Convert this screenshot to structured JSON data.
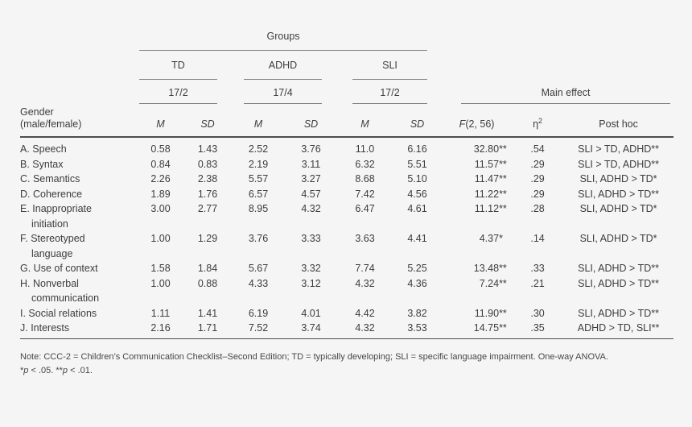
{
  "colors": {
    "background": "#f5f5f5",
    "text": "#3d3d3d",
    "rule_thin": "#828282",
    "rule_thick": "#4d4d4d"
  },
  "table": {
    "spanners": {
      "groups": "Groups",
      "main_effect": "Main effect"
    },
    "row_header": {
      "line1": "Gender",
      "line2": "(male/female)"
    },
    "groups": [
      {
        "name": "TD",
        "ratio": "17/2"
      },
      {
        "name": "ADHD",
        "ratio": "17/4"
      },
      {
        "name": "SLI",
        "ratio": "17/2"
      }
    ],
    "col_headers": {
      "m": "M",
      "sd": "SD",
      "f_symbol": "F",
      "f_df": "(2, 56)",
      "eta_symbol": "η",
      "eta_sup": "2",
      "post_hoc": "Post hoc"
    },
    "rows": [
      {
        "label_lines": [
          "A. Speech"
        ],
        "td_m": "0.58",
        "td_sd": "1.43",
        "adhd_m": "2.52",
        "adhd_sd": "3.76",
        "sli_m": "11.0",
        "sli_sd": "6.16",
        "f": "32.80",
        "f_sig": "**",
        "eta": ".54",
        "post_hoc": "SLI > TD, ADHD**"
      },
      {
        "label_lines": [
          "B. Syntax"
        ],
        "td_m": "0.84",
        "td_sd": "0.83",
        "adhd_m": "2.19",
        "adhd_sd": "3.11",
        "sli_m": "6.32",
        "sli_sd": "5.51",
        "f": "11.57",
        "f_sig": "**",
        "eta": ".29",
        "post_hoc": "SLI > TD, ADHD**"
      },
      {
        "label_lines": [
          "C. Semantics"
        ],
        "td_m": "2.26",
        "td_sd": "2.38",
        "adhd_m": "5.57",
        "adhd_sd": "3.27",
        "sli_m": "8.68",
        "sli_sd": "5.10",
        "f": "11.47",
        "f_sig": "**",
        "eta": ".29",
        "post_hoc": "SLI, ADHD > TD*"
      },
      {
        "label_lines": [
          "D. Coherence"
        ],
        "td_m": "1.89",
        "td_sd": "1.76",
        "adhd_m": "6.57",
        "adhd_sd": "4.57",
        "sli_m": "7.42",
        "sli_sd": "4.56",
        "f": "11.22",
        "f_sig": "**",
        "eta": ".29",
        "post_hoc": "SLI, ADHD > TD**"
      },
      {
        "label_lines": [
          "E. Inappropriate",
          "initiation"
        ],
        "td_m": "3.00",
        "td_sd": "2.77",
        "adhd_m": "8.95",
        "adhd_sd": "4.32",
        "sli_m": "6.47",
        "sli_sd": "4.61",
        "f": "11.12",
        "f_sig": "**",
        "eta": ".28",
        "post_hoc": "SLI, ADHD > TD*"
      },
      {
        "label_lines": [
          "F. Stereotyped",
          "language"
        ],
        "td_m": "1.00",
        "td_sd": "1.29",
        "adhd_m": "3.76",
        "adhd_sd": "3.33",
        "sli_m": "3.63",
        "sli_sd": "4.41",
        "f": "4.37",
        "f_sig": "*",
        "eta": ".14",
        "post_hoc": "SLI, ADHD > TD*"
      },
      {
        "label_lines": [
          "G. Use of context"
        ],
        "td_m": "1.58",
        "td_sd": "1.84",
        "adhd_m": "5.67",
        "adhd_sd": "3.32",
        "sli_m": "7.74",
        "sli_sd": "5.25",
        "f": "13.48",
        "f_sig": "**",
        "eta": ".33",
        "post_hoc": "SLI, ADHD > TD**"
      },
      {
        "label_lines": [
          "H. Nonverbal",
          "communication"
        ],
        "td_m": "1.00",
        "td_sd": "0.88",
        "adhd_m": "4.33",
        "adhd_sd": "3.12",
        "sli_m": "4.32",
        "sli_sd": "4.36",
        "f": "7.24",
        "f_sig": "**",
        "eta": ".21",
        "post_hoc": "SLI, ADHD > TD**"
      },
      {
        "label_lines": [
          "I. Social relations"
        ],
        "td_m": "1.11",
        "td_sd": "1.41",
        "adhd_m": "6.19",
        "adhd_sd": "4.01",
        "sli_m": "4.42",
        "sli_sd": "3.82",
        "f": "11.90",
        "f_sig": "**",
        "eta": ".30",
        "post_hoc": "SLI, ADHD > TD**"
      },
      {
        "label_lines": [
          "J. Interests"
        ],
        "td_m": "2.16",
        "td_sd": "1.71",
        "adhd_m": "7.52",
        "adhd_sd": "3.74",
        "sli_m": "4.32",
        "sli_sd": "3.53",
        "f": "14.75",
        "f_sig": "**",
        "eta": ".35",
        "post_hoc": "ADHD > TD, SLI**"
      }
    ]
  },
  "note": {
    "line1": "Note: CCC-2 = Children’s Communication Checklist–Second Edition; TD = typically developing; SLI = specific language impairment. One-way ANOVA.",
    "sig": {
      "star1": "*",
      "p1": "p",
      "rest1": " < .05. ",
      "star2": "**",
      "p2": "p",
      "rest2": " < .01."
    }
  }
}
